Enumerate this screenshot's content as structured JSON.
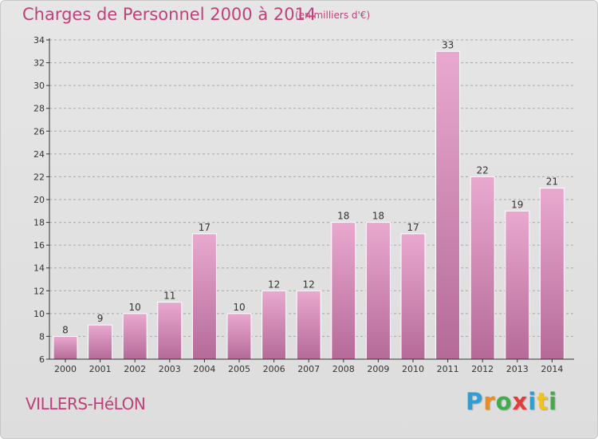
{
  "title": "Charges de Personnel 2000 à 2014",
  "unit_note": "(en milliers d'€)",
  "commune": "VILLERS-HéLON",
  "logo": {
    "letters": [
      "P",
      "r",
      "o",
      "x",
      "i",
      "t",
      "i"
    ],
    "colors": [
      "#2a9fd8",
      "#f08a1c",
      "#3fae49",
      "#e63b3b",
      "#2a9fd8",
      "#f0c41c",
      "#3fae49"
    ]
  },
  "colors": {
    "accent": "#c0407a",
    "bar_top": "#e9a9cf",
    "bar_bottom": "#b56a98",
    "axis": "#333333",
    "grid": "#a8a8a8"
  },
  "chart_data": {
    "type": "bar",
    "categories": [
      "2000",
      "2001",
      "2002",
      "2003",
      "2004",
      "2005",
      "2006",
      "2007",
      "2008",
      "2009",
      "2010",
      "2011",
      "2012",
      "2013",
      "2014"
    ],
    "values": [
      8,
      9,
      10,
      11,
      17,
      10,
      12,
      12,
      18,
      18,
      17,
      33,
      22,
      19,
      21
    ],
    "ylim": [
      6,
      34
    ],
    "yticks": [
      6,
      8,
      10,
      12,
      14,
      16,
      18,
      20,
      22,
      24,
      26,
      28,
      30,
      32,
      34
    ],
    "grid": "horizontal dashed",
    "data_labels": true
  }
}
